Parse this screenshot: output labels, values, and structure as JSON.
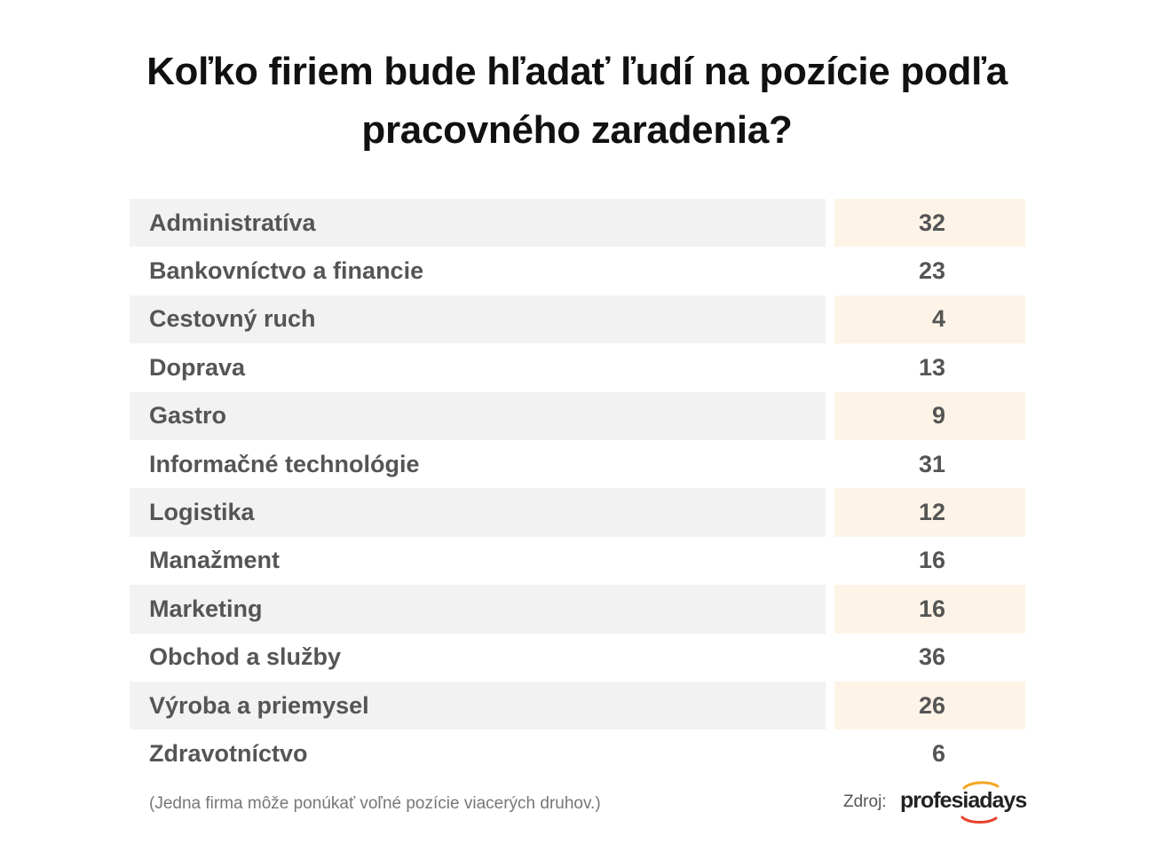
{
  "title": "Koľko firiem bude hľadať ľudí na pozície podľa pracovného zaradenia?",
  "chart_data": {
    "type": "table",
    "title": "Koľko firiem bude hľadať ľudí na pozície podľa pracovného zaradenia?",
    "rows": [
      {
        "label": "Administratíva",
        "value": 32
      },
      {
        "label": "Bankovníctvo a financie",
        "value": 23
      },
      {
        "label": "Cestovný ruch",
        "value": 4
      },
      {
        "label": "Doprava",
        "value": 13
      },
      {
        "label": "Gastro",
        "value": 9
      },
      {
        "label": "Informačné technológie",
        "value": 31
      },
      {
        "label": "Logistika",
        "value": 12
      },
      {
        "label": "Manažment",
        "value": 16
      },
      {
        "label": "Marketing",
        "value": 16
      },
      {
        "label": "Obchod a služby",
        "value": 36
      },
      {
        "label": "Výroba a priemysel",
        "value": 26
      },
      {
        "label": "Zdravotníctvo",
        "value": 6
      }
    ]
  },
  "footnote": "(Jedna firma môže ponúkať voľné pozície viacerých druhov.)",
  "source": {
    "label": "Zdroj:",
    "logo_text": "profesiadays",
    "logo_arc_colors": [
      "#f5a623",
      "#e8432e"
    ]
  },
  "colors": {
    "label_shade": "#f2f2f2",
    "value_shade": "#fdf4e7",
    "text": "#555555",
    "title": "#111111"
  }
}
